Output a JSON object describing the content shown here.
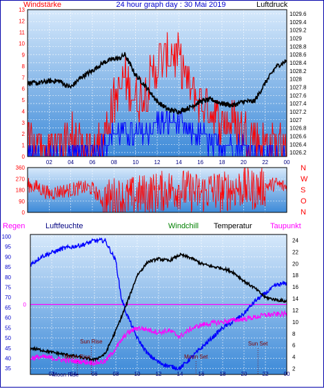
{
  "header": {
    "title": "24 hour graph day : 30 Mai 2019",
    "left_label": "Windstärke",
    "right_label": "Luftdruck"
  },
  "chart_data": [
    {
      "id": "wind-pressure",
      "type": "line",
      "title": "24 hour graph day : 30 Mai 2019",
      "x_ticks": [
        "02",
        "04",
        "06",
        "08",
        "10",
        "12",
        "14",
        "16",
        "18",
        "20",
        "22",
        "00"
      ],
      "y_left_label": "Windstärke",
      "y_left_ticks": [
        "0",
        "1",
        "2",
        "3",
        "4",
        "5",
        "6",
        "7",
        "8",
        "9",
        "10",
        "11",
        "12",
        "13"
      ],
      "y_left_range": [
        0,
        13
      ],
      "y_right_label": "Luftdruck",
      "y_right_ticks": [
        "1026.2",
        "1026.4",
        "1026.6",
        "1026.8",
        "1027",
        "1027.2",
        "1027.4",
        "1027.6",
        "1027.8",
        "1028",
        "1028.2",
        "1028.4",
        "1028.6",
        "1028.8",
        "1029",
        "1029.2",
        "1029.4",
        "1029.6"
      ],
      "y_right_range": [
        1026.1,
        1029.7
      ],
      "x_range_hours": [
        0,
        24
      ],
      "series": [
        {
          "name": "Luftdruck",
          "color": "#000000",
          "x": [
            0,
            1,
            2,
            3,
            3.5,
            4,
            5,
            6,
            7,
            8,
            8.5,
            9,
            10,
            11,
            12,
            13,
            14,
            15,
            16,
            17,
            18,
            19,
            20,
            21,
            22,
            23,
            24
          ],
          "y": [
            1027.9,
            1027.9,
            1027.95,
            1027.95,
            1027.85,
            1027.8,
            1028.05,
            1028.2,
            1028.4,
            1028.5,
            1028.5,
            1028.6,
            1028.1,
            1027.8,
            1027.45,
            1027.25,
            1027.2,
            1027.3,
            1027.45,
            1027.5,
            1027.4,
            1027.35,
            1027.45,
            1027.45,
            1027.9,
            1028.3,
            1028.45
          ]
        },
        {
          "name": "Wind gust",
          "color": "#ff0000",
          "x": [
            0,
            2,
            4,
            6,
            7,
            7.5,
            8,
            9,
            10,
            11,
            12,
            13,
            14,
            15,
            16,
            17,
            18,
            19,
            20,
            21,
            22,
            23,
            24
          ],
          "y": [
            2,
            1,
            2,
            0,
            2,
            3,
            5,
            7,
            5,
            6,
            8,
            9,
            9,
            6,
            5,
            4,
            3,
            3,
            2,
            2,
            1,
            1,
            2
          ]
        },
        {
          "name": "Wind mean",
          "color": "#0000ff",
          "x": [
            0,
            6,
            7,
            8,
            9,
            10,
            11,
            12,
            13,
            14,
            15,
            16,
            17,
            18,
            19,
            20,
            21,
            22,
            23,
            24
          ],
          "y": [
            0,
            0,
            1,
            2,
            2,
            2,
            2,
            3,
            3,
            3,
            2,
            2,
            1,
            1,
            1,
            1,
            0,
            0,
            0,
            0
          ]
        }
      ]
    },
    {
      "id": "wind-direction",
      "type": "line",
      "y_left_ticks": [
        "0",
        "90",
        "180",
        "270",
        "360"
      ],
      "y_left_range": [
        0,
        360
      ],
      "y_right_ticks": [
        "N",
        "W",
        "S",
        "O",
        "N"
      ],
      "x_range_hours": [
        0,
        24
      ],
      "series": [
        {
          "name": "Windrichtung",
          "color": "#ff0000",
          "x": [
            0,
            1,
            2,
            3,
            4,
            5,
            6,
            7,
            8,
            9,
            10,
            11,
            12,
            13,
            14,
            15,
            16,
            17,
            18,
            19,
            20,
            21,
            22,
            23,
            24
          ],
          "y": [
            220,
            200,
            150,
            170,
            180,
            200,
            190,
            90,
            120,
            110,
            130,
            150,
            160,
            180,
            190,
            170,
            150,
            180,
            160,
            190,
            200,
            180,
            210,
            230,
            200
          ]
        }
      ]
    },
    {
      "id": "temp-humidity",
      "type": "line",
      "legend": [
        "Regen",
        "Luftfeuchte",
        "Windchill",
        "Temperatur",
        "Taupunkt"
      ],
      "x_ticks": [
        "02",
        "04",
        "06",
        "08",
        "10",
        "12",
        "14",
        "16",
        "18",
        "20",
        "22",
        "00"
      ],
      "y_left_ticks": [
        "35",
        "40",
        "45",
        "50",
        "55",
        "60",
        "65",
        "70",
        "75",
        "80",
        "85",
        "90",
        "95",
        "100"
      ],
      "y_left_range": [
        32,
        101
      ],
      "y_right_ticks": [
        "2",
        "4",
        "6",
        "8",
        "10",
        "12",
        "14",
        "16",
        "18",
        "20",
        "22",
        "24"
      ],
      "y_right_range": [
        1,
        25
      ],
      "rain_level_label": "0",
      "x_range_hours": [
        0,
        24
      ],
      "series": [
        {
          "name": "Luftfeuchte",
          "color": "#0000ff",
          "x": [
            0,
            1,
            2,
            3,
            4,
            5,
            6,
            7,
            8,
            8.5,
            9,
            10,
            11,
            12,
            13,
            14,
            15,
            16,
            17,
            18,
            19,
            20,
            21,
            22,
            23,
            24
          ],
          "y": [
            86,
            90,
            92,
            94,
            95,
            96,
            98,
            98,
            88,
            70,
            62,
            50,
            42,
            38,
            36,
            35,
            40,
            45,
            50,
            55,
            58,
            62,
            68,
            72,
            76,
            77
          ]
        },
        {
          "name": "Temperatur",
          "color": "#000000",
          "x": [
            0,
            1,
            2,
            3,
            4,
            5,
            6,
            7,
            8,
            9,
            10,
            11,
            12,
            13,
            14,
            15,
            16,
            17,
            18,
            19,
            20,
            21,
            22,
            23,
            24
          ],
          "y": [
            5.5,
            5.2,
            4.8,
            4.5,
            4.2,
            3.8,
            3.5,
            4.5,
            8.5,
            13,
            18,
            20.3,
            20.8,
            20.5,
            21.5,
            21,
            20,
            19.5,
            19.2,
            18.5,
            17,
            15.8,
            14.2,
            13.8,
            13.5
          ]
        },
        {
          "name": "Taupunkt",
          "color": "#ff00ff",
          "x": [
            0,
            1,
            2,
            3,
            4,
            5,
            6,
            7,
            8,
            9,
            10,
            11,
            12,
            13,
            14,
            15,
            16,
            17,
            18,
            19,
            20,
            21,
            22,
            23,
            24
          ],
          "y": [
            3.8,
            4,
            3.8,
            3.5,
            3.3,
            3.2,
            3,
            3.2,
            5.5,
            8,
            9,
            8.7,
            8.2,
            8.5,
            7.5,
            8.8,
            9.5,
            9.8,
            10,
            10.3,
            10.5,
            10.8,
            11.2,
            11.3,
            11.4
          ]
        }
      ],
      "annotations": [
        {
          "text": "Sun Rise",
          "x_hour": 5.7
        },
        {
          "text": "Moon Rise",
          "x_hour": 4.4
        },
        {
          "text": "Moon Set",
          "x_hour": 15.5
        },
        {
          "text": "Sun Set",
          "x_hour": 21.3
        },
        {
          "text": "Moon Rise",
          "x_hour": 3.3
        }
      ]
    }
  ]
}
